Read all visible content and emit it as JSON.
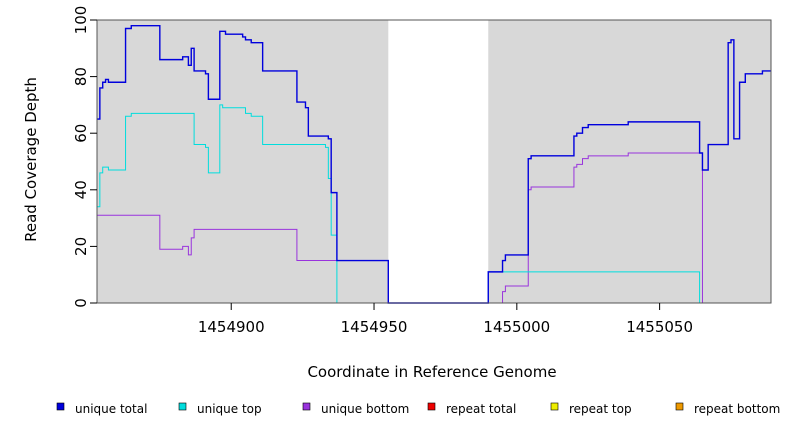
{
  "chart_data": {
    "type": "line",
    "step": true,
    "xlabel": "Coordinate in Reference Genome",
    "ylabel": "Read Coverage Depth",
    "xlim": [
      1454853,
      1455089
    ],
    "ylim": [
      0,
      100
    ],
    "x_ticks": [
      1454900,
      1454950,
      1455000,
      1455050
    ],
    "y_ticks": [
      0,
      20,
      40,
      60,
      80,
      100
    ],
    "shaded_regions": [
      [
        1454853,
        1454955
      ],
      [
        1454990,
        1455089
      ]
    ],
    "grid": false,
    "legend_position": "bottom",
    "series": [
      {
        "name": "unique total",
        "color": "#0000dd",
        "points": [
          [
            1454853,
            65
          ],
          [
            1454854,
            76
          ],
          [
            1454855,
            78
          ],
          [
            1454856,
            79
          ],
          [
            1454857,
            78
          ],
          [
            1454863,
            97
          ],
          [
            1454865,
            98
          ],
          [
            1454875,
            86
          ],
          [
            1454883,
            87
          ],
          [
            1454885,
            84
          ],
          [
            1454886,
            90
          ],
          [
            1454887,
            82
          ],
          [
            1454891,
            81
          ],
          [
            1454892,
            72
          ],
          [
            1454896,
            96
          ],
          [
            1454898,
            95
          ],
          [
            1454904,
            94
          ],
          [
            1454905,
            93
          ],
          [
            1454907,
            92
          ],
          [
            1454911,
            82
          ],
          [
            1454923,
            71
          ],
          [
            1454926,
            69
          ],
          [
            1454927,
            59
          ],
          [
            1454934,
            58
          ],
          [
            1454935,
            39
          ],
          [
            1454937,
            15
          ],
          [
            1454955,
            0
          ],
          [
            1454990,
            11
          ],
          [
            1454995,
            15
          ],
          [
            1454996,
            17
          ],
          [
            1455004,
            51
          ],
          [
            1455005,
            52
          ],
          [
            1455020,
            59
          ],
          [
            1455021,
            60
          ],
          [
            1455023,
            62
          ],
          [
            1455025,
            63
          ],
          [
            1455039,
            64
          ],
          [
            1455064,
            53
          ],
          [
            1455065,
            47
          ],
          [
            1455067,
            56
          ],
          [
            1455074,
            92
          ],
          [
            1455075,
            93
          ],
          [
            1455076,
            58
          ],
          [
            1455078,
            78
          ],
          [
            1455080,
            81
          ],
          [
            1455086,
            82
          ],
          [
            1455089,
            82
          ]
        ]
      },
      {
        "name": "unique top",
        "color": "#00dddd",
        "points": [
          [
            1454853,
            34
          ],
          [
            1454854,
            46
          ],
          [
            1454855,
            48
          ],
          [
            1454857,
            47
          ],
          [
            1454863,
            66
          ],
          [
            1454865,
            67
          ],
          [
            1454887,
            56
          ],
          [
            1454891,
            55
          ],
          [
            1454892,
            46
          ],
          [
            1454896,
            70
          ],
          [
            1454897,
            69
          ],
          [
            1454905,
            67
          ],
          [
            1454907,
            66
          ],
          [
            1454911,
            56
          ],
          [
            1454933,
            55
          ],
          [
            1454934,
            44
          ],
          [
            1454935,
            24
          ],
          [
            1454937,
            0
          ],
          [
            1454990,
            11
          ],
          [
            1455064,
            0
          ],
          [
            1455089,
            0
          ]
        ]
      },
      {
        "name": "unique bottom",
        "color": "#9933dd",
        "points": [
          [
            1454853,
            31
          ],
          [
            1454875,
            19
          ],
          [
            1454883,
            20
          ],
          [
            1454885,
            17
          ],
          [
            1454886,
            23
          ],
          [
            1454887,
            26
          ],
          [
            1454923,
            15
          ],
          [
            1454937,
            15
          ],
          [
            1454955,
            0
          ],
          [
            1454995,
            4
          ],
          [
            1454996,
            6
          ],
          [
            1455004,
            40
          ],
          [
            1455005,
            41
          ],
          [
            1455020,
            48
          ],
          [
            1455021,
            49
          ],
          [
            1455023,
            51
          ],
          [
            1455025,
            52
          ],
          [
            1455039,
            53
          ],
          [
            1455064,
            53
          ],
          [
            1455065,
            0
          ],
          [
            1455089,
            0
          ]
        ]
      },
      {
        "name": "repeat total",
        "color": "#ee0000",
        "points": [
          [
            1454853,
            0
          ],
          [
            1455089,
            0
          ]
        ]
      },
      {
        "name": "repeat top",
        "color": "#eeee00",
        "points": [
          [
            1454853,
            0
          ],
          [
            1455089,
            0
          ]
        ]
      },
      {
        "name": "repeat bottom",
        "color": "#ee9900",
        "points": [
          [
            1454853,
            0
          ],
          [
            1455089,
            0
          ]
        ]
      }
    ]
  }
}
